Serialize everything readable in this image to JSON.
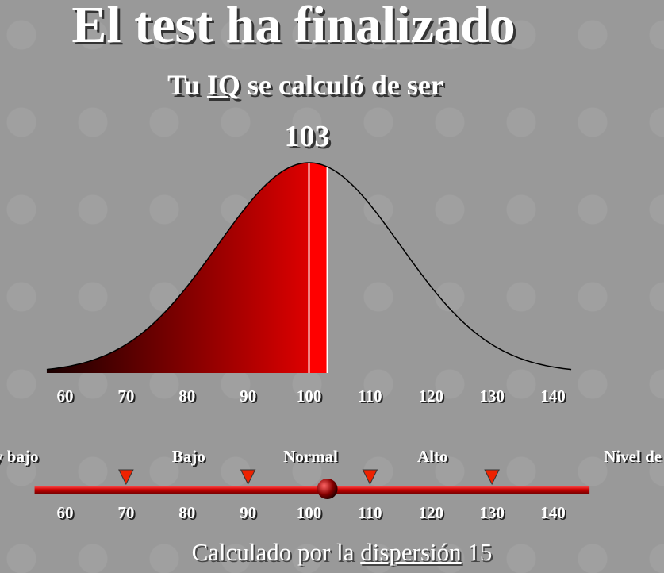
{
  "header": {
    "title": "El test ha finalizado",
    "subtitle_start": "Tu",
    "subtitle_link": "IQ",
    "subtitle_end": "se calculó de ser"
  },
  "result": {
    "iq": 103
  },
  "curve": {
    "mean": 100,
    "xlim": [
      57,
      143
    ],
    "ticks": [
      60,
      70,
      80,
      90,
      100,
      110,
      120,
      130,
      140
    ]
  },
  "scale": {
    "labels": [
      "Muy bajo",
      "Bajo",
      "Normal",
      "Alto",
      "Nivel de Mensa"
    ],
    "thresholds": [
      70,
      90,
      110,
      130
    ],
    "xlim": [
      55,
      146
    ],
    "ticks": [
      60,
      70,
      80,
      90,
      100,
      110,
      120,
      130,
      140
    ]
  },
  "footer": {
    "text": "Calculado por la",
    "link": "dispersión",
    "value": 15
  }
}
